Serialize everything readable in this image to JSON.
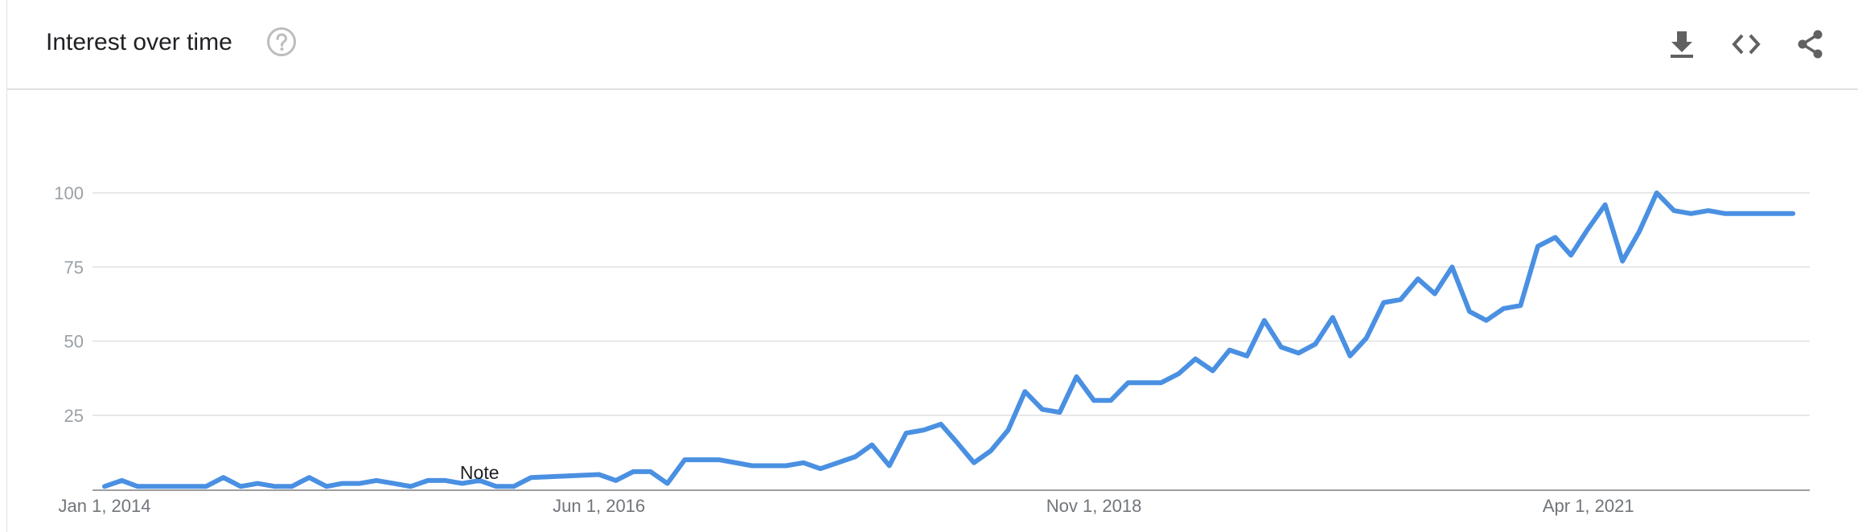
{
  "header": {
    "title": "Interest over time",
    "help_icon": "help-circle-icon",
    "actions": [
      {
        "name": "download-icon"
      },
      {
        "name": "embed-code-icon"
      },
      {
        "name": "share-icon"
      }
    ]
  },
  "colors": {
    "line": "#4a90e2",
    "grid": "#e0e0e0",
    "axis": "#9e9e9e",
    "tick_text": "#9aa0a6",
    "x_tick_text": "#70757a",
    "icon": "#616161"
  },
  "chart_data": {
    "type": "line",
    "title": "Interest over time",
    "xlabel": "",
    "ylabel": "",
    "ylim": [
      0,
      100
    ],
    "yticks": [
      25,
      50,
      75,
      100
    ],
    "ytick_labels": [
      "25",
      "50",
      "75",
      "100"
    ],
    "xlim": [
      "2014-01-01",
      "2022-05-01"
    ],
    "xticks": [
      "2014-01-01",
      "2016-06-01",
      "2018-11-01",
      "2021-04-01"
    ],
    "xtick_labels": [
      "Jan 1, 2014",
      "Jun 1, 2016",
      "Nov 1, 2018",
      "Apr 1, 2021"
    ],
    "grid": true,
    "annotations": [
      {
        "text": "Note",
        "x": "2015-11-01"
      }
    ],
    "series": [
      {
        "x": [
          "2014-01-01",
          "2014-02-01",
          "2014-03-01",
          "2014-04-01",
          "2014-05-01",
          "2014-06-01",
          "2014-07-01",
          "2014-08-01",
          "2014-09-01",
          "2014-10-01",
          "2014-11-01",
          "2014-12-01",
          "2015-01-01",
          "2015-02-01",
          "2015-03-01",
          "2015-04-01",
          "2015-05-01",
          "2015-06-01",
          "2015-07-01",
          "2015-08-01",
          "2015-09-01",
          "2015-10-01",
          "2015-11-01",
          "2015-12-01",
          "2016-01-01",
          "2016-02-01",
          "2016-06-01",
          "2016-07-01",
          "2016-08-01",
          "2016-09-01",
          "2016-10-01",
          "2016-11-01",
          "2017-01-01",
          "2017-03-01",
          "2017-05-01",
          "2017-06-01",
          "2017-07-01",
          "2017-08-01",
          "2017-09-01",
          "2017-10-01",
          "2017-11-01",
          "2017-12-01",
          "2018-01-01",
          "2018-02-01",
          "2018-03-01",
          "2018-04-01",
          "2018-05-01",
          "2018-06-01",
          "2018-07-01",
          "2018-08-01",
          "2018-09-01",
          "2018-10-01",
          "2018-11-01",
          "2018-12-01",
          "2019-01-01",
          "2019-03-01",
          "2019-04-01",
          "2019-05-01",
          "2019-06-01",
          "2019-07-01",
          "2019-08-01",
          "2019-09-01",
          "2019-10-01",
          "2019-11-01",
          "2019-12-01",
          "2020-01-01",
          "2020-02-01",
          "2020-03-01",
          "2020-04-01",
          "2020-05-01",
          "2020-06-01",
          "2020-07-01",
          "2020-08-01",
          "2020-09-01",
          "2020-10-01",
          "2020-11-01",
          "2020-12-01",
          "2021-01-01",
          "2021-02-01",
          "2021-03-01",
          "2021-04-01",
          "2021-05-01",
          "2021-06-01",
          "2021-07-01",
          "2021-08-01",
          "2021-09-01",
          "2021-10-01",
          "2021-11-01",
          "2021-12-01",
          "2022-01-01",
          "2022-02-01",
          "2022-03-01",
          "2022-04-01"
        ],
        "values": [
          1,
          3,
          1,
          1,
          1,
          1,
          1,
          4,
          1,
          2,
          1,
          1,
          4,
          1,
          2,
          2,
          3,
          2,
          1,
          3,
          3,
          2,
          3,
          1,
          1,
          4,
          5,
          3,
          6,
          6,
          2,
          10,
          10,
          8,
          8,
          9,
          7,
          9,
          11,
          15,
          8,
          19,
          20,
          22,
          16,
          9,
          13,
          20,
          33,
          27,
          26,
          38,
          30,
          30,
          36,
          36,
          39,
          44,
          40,
          47,
          45,
          57,
          48,
          46,
          49,
          58,
          45,
          51,
          63,
          64,
          71,
          66,
          75,
          60,
          57,
          61,
          62,
          82,
          85,
          79,
          88,
          96,
          77,
          87,
          100,
          94,
          93,
          94,
          93,
          93,
          93,
          93,
          93
        ]
      }
    ]
  }
}
